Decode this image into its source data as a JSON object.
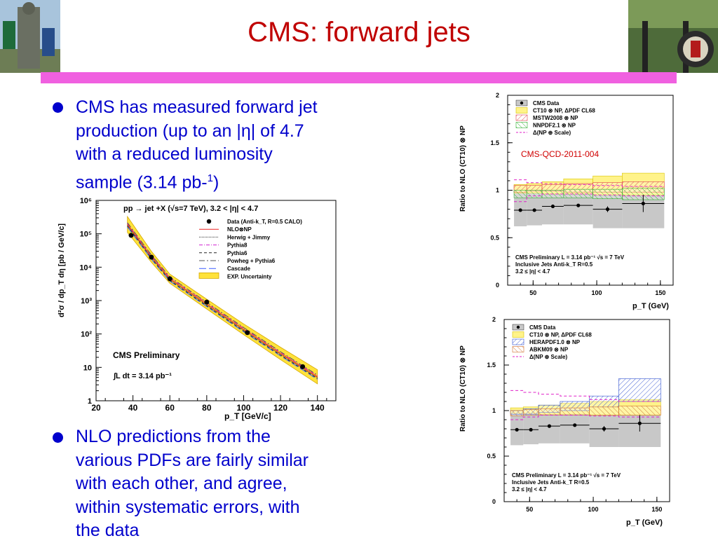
{
  "slide": {
    "title": "CMS: forward jets",
    "bullets": [
      {
        "lines": [
          "CMS has measured forward jet",
          "production (up to an  |η| of 4.7",
          "with a reduced luminosity",
          "sample (3.14 pb-"
        ],
        "sup": "1",
        "tail": ")"
      },
      {
        "lines": [
          "NLO predictions from the",
          "various PDFs are fairly similar",
          "with each other, and agree,",
          "within systematic errors, with",
          "the data"
        ]
      }
    ],
    "bar_color": "#f060e0",
    "title_color": "#c00000",
    "text_color": "#0000cc"
  },
  "chart_data": [
    {
      "type": "scatter",
      "title": "pp → jet +X (√s=7 TeV), 3.2 < |η| < 4.7",
      "xlabel": "p_T [GeV/c]",
      "ylabel": "d²σ / dp_T dη [pb / GeV/c]",
      "xlim": [
        20,
        150
      ],
      "ylim": [
        1,
        1000000
      ],
      "log_y": true,
      "x_ticks": [
        "20",
        "40",
        "60",
        "80",
        "100",
        "120",
        "140"
      ],
      "y_ticks": [
        "1",
        "10",
        "10²",
        "10³",
        "10⁴",
        "10⁵",
        "10⁶"
      ],
      "legend_placement": "top-right",
      "legend": [
        "Data (Anti-k_T, R=0.5 CALO)",
        "NLO⊗NP",
        "Herwig + Jimmy",
        "Pythia8",
        "Pythia6",
        "Powheg + Pythia6",
        "Cascade",
        "EXP. Uncertainty"
      ],
      "annotations": [
        "CMS Preliminary",
        "∫L dt = 3.14 pb⁻¹"
      ],
      "series": [
        {
          "name": "Data (Anti-k_T, R=0.5 CALO)",
          "x": [
            39,
            50,
            60,
            80,
            102,
            132
          ],
          "y": [
            90000,
            20000,
            4500,
            900,
            110,
            10.5
          ]
        }
      ],
      "uncertainty_band": {
        "x": [
          37,
          50,
          60,
          80,
          100,
          120,
          140
        ],
        "lo": [
          110000,
          14000,
          3300,
          560,
          95,
          17,
          3.2
        ],
        "hi": [
          330000,
          30000,
          6200,
          1100,
          200,
          40,
          8.5
        ]
      }
    },
    {
      "type": "scatter",
      "xlabel": "p_T (GeV)",
      "ylabel": "Ratio to NLO (CT10) ⊗ NP",
      "xlim": [
        30,
        160
      ],
      "ylim": [
        0,
        2
      ],
      "x_ticks": [
        "50",
        "100",
        "150"
      ],
      "y_ticks": [
        "0",
        "0.5",
        "1",
        "1.5",
        "2"
      ],
      "annotations": [
        "CMS-QCD-2011-004",
        "CMS Preliminary  L = 3.14 pb⁻¹   √s = 7 TeV",
        "Inclusive Jets   Anti-k_T R=0.5",
        "3.2 ≤ |η| < 4.7"
      ],
      "legend": [
        "CMS Data",
        "CT10 ⊗ NP, ΔPDF CL68",
        "MSTW2008 ⊗ NP",
        "NNPDF2.1 ⊗ NP",
        "Δ(NP ⊕ Scale)"
      ],
      "bin_edges": [
        35,
        45,
        57,
        74,
        97,
        120,
        153
      ],
      "series": [
        {
          "name": "CMS Data",
          "x": [
            40,
            51,
            65.5,
            85.5,
            108.5,
            136.5
          ],
          "y": [
            0.79,
            0.79,
            0.83,
            0.84,
            0.8,
            0.86
          ],
          "err": [
            0.01,
            0.01,
            0.01,
            0.01,
            0.03,
            0.09
          ]
        }
      ],
      "systematic_band": {
        "lo": [
          0.62,
          0.63,
          0.64,
          0.64,
          0.6,
          0.6
        ],
        "hi": [
          0.97,
          0.97,
          1.0,
          1.02,
          1.05,
          1.1
        ]
      },
      "ct10_band": {
        "lo": [
          0.97,
          0.97,
          0.96,
          0.96,
          0.95,
          0.95
        ],
        "hi": [
          1.06,
          1.07,
          1.09,
          1.12,
          1.15,
          1.18
        ]
      },
      "mstw2008_band": {
        "lo": [
          0.98,
          0.99,
          0.99,
          0.98,
          0.98,
          0.98
        ],
        "hi": [
          1.05,
          1.05,
          1.06,
          1.07,
          1.08,
          1.09
        ]
      },
      "nnpdf_band": {
        "lo": [
          0.92,
          0.92,
          0.92,
          0.92,
          0.91,
          0.9
        ],
        "hi": [
          1.0,
          1.0,
          1.0,
          1.01,
          1.01,
          1.02
        ]
      },
      "np_scale_upper": [
        1.11,
        1.08,
        1.07,
        1.06,
        1.05,
        1.04
      ],
      "np_scale_lower": [
        0.88,
        0.94,
        0.96,
        0.96,
        0.95,
        0.94
      ]
    },
    {
      "type": "scatter",
      "xlabel": "p_T (GeV)",
      "ylabel": "Ratio to NLO (CT10) ⊗ NP",
      "xlim": [
        30,
        160
      ],
      "ylim": [
        0,
        2
      ],
      "x_ticks": [
        "50",
        "100",
        "150"
      ],
      "y_ticks": [
        "0",
        "0.5",
        "1",
        "1.5",
        "2"
      ],
      "annotations": [
        "CMS Preliminary  L = 3.14 pb⁻¹   √s = 7 TeV",
        "Inclusive Jets   Anti-k_T R=0.5",
        "3.2 ≤ |η| < 4.7"
      ],
      "legend": [
        "CMS Data",
        "CT10 ⊗ NP, ΔPDF CL68",
        "HERAPDF1.0 ⊗ NP",
        "ABKM09 ⊗ NP",
        "Δ(NP ⊕ Scale)"
      ],
      "bin_edges": [
        35,
        45,
        57,
        74,
        97,
        120,
        153
      ],
      "series": [
        {
          "name": "CMS Data",
          "x": [
            40,
            51,
            65.5,
            85.5,
            108.5,
            136.5
          ],
          "y": [
            0.79,
            0.79,
            0.83,
            0.84,
            0.8,
            0.86
          ],
          "err": [
            0.01,
            0.01,
            0.01,
            0.01,
            0.03,
            0.09
          ]
        }
      ],
      "systematic_band": {
        "lo": [
          0.62,
          0.63,
          0.64,
          0.64,
          0.6,
          0.6
        ],
        "hi": [
          0.97,
          0.97,
          1.0,
          1.02,
          1.05,
          1.1
        ]
      },
      "ct10_band": {
        "lo": [
          0.97,
          0.97,
          0.96,
          0.96,
          0.95,
          0.95
        ],
        "hi": [
          1.03,
          1.04,
          1.06,
          1.08,
          1.1,
          1.12
        ]
      },
      "herapdf_band": {
        "lo": [
          0.96,
          0.96,
          0.98,
          1.0,
          1.04,
          1.1
        ],
        "hi": [
          1.0,
          1.02,
          1.06,
          1.1,
          1.16,
          1.35
        ]
      },
      "abkm09_band": {
        "lo": [
          0.94,
          0.95,
          0.95,
          0.95,
          0.95,
          0.95
        ],
        "hi": [
          1.0,
          1.01,
          1.02,
          1.03,
          1.04,
          1.05
        ]
      },
      "np_scale_upper": [
        1.22,
        1.2,
        1.18,
        1.16,
        1.12,
        1.1
      ],
      "np_scale_lower": [
        0.9,
        0.93,
        0.95,
        0.95,
        0.94,
        0.93
      ]
    }
  ]
}
